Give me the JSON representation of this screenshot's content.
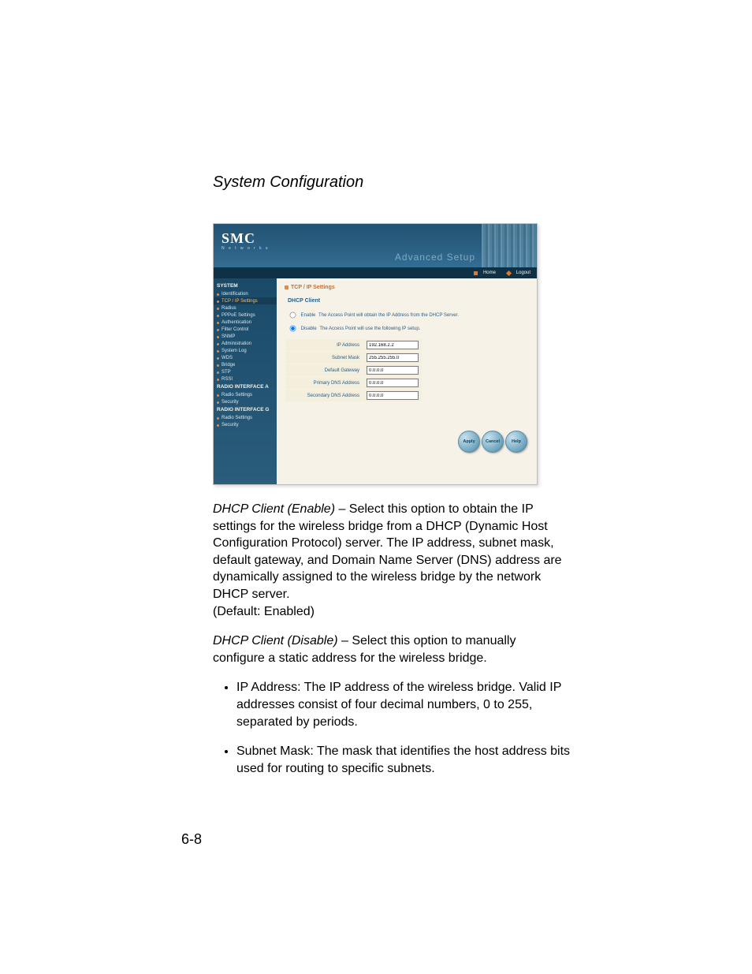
{
  "page_title": "System Configuration",
  "page_number": "6-8",
  "screenshot": {
    "logo": "SMC",
    "logo_sub": "N e t w o r k s",
    "adv_setup": "Advanced Setup",
    "nav": {
      "home": "Home",
      "logout": "Logout"
    },
    "sidebar": {
      "head1": "SYSTEM",
      "items1": [
        "Identification",
        "TCP / IP Settings",
        "Radius",
        "PPPoE Settings",
        "Authentication",
        "Filter Control",
        "SNMP",
        "Administration",
        "System Log",
        "WDS",
        "Bridge",
        "STP",
        "RSSI"
      ],
      "head2": "RADIO INTERFACE A",
      "items2": [
        "Radio Settings",
        "Security"
      ],
      "head3": "RADIO INTERFACE G",
      "items3": [
        "Radio Settings",
        "Security"
      ]
    },
    "content": {
      "title": "TCP / IP Settings",
      "sub": "DHCP Client",
      "opt_enable": "Enable",
      "opt_enable_desc": "The Access Point will obtain the IP Address from the DHCP Server.",
      "opt_disable": "Disable",
      "opt_disable_desc": "The Access Point will use the following IP setup.",
      "fields": [
        {
          "label": "IP Address",
          "value": "192.168.2.2"
        },
        {
          "label": "Subnet Mask",
          "value": "255.255.255.0"
        },
        {
          "label": "Default Gateway",
          "value": "0.0.0.0"
        },
        {
          "label": "Primary DNS Address",
          "value": "0.0.0.0"
        },
        {
          "label": "Secondary DNS Address",
          "value": "0.0.0.0"
        }
      ],
      "btn_apply": "Apply",
      "btn_cancel": "Cancel",
      "btn_help": "Help"
    }
  },
  "para1_lead": "DHCP Client (Enable)",
  "para1_rest": " – Select this option to obtain the IP settings for the wireless bridge from a DHCP (Dynamic Host Configuration Protocol) server. The IP address, subnet mask, default gateway, and Domain Name Server (DNS) address are dynamically assigned to the wireless bridge by the network DHCP server.",
  "para1_default": "(Default: Enabled)",
  "para2_lead": "DHCP Client (Disable)",
  "para2_rest": " – Select this option to manually configure a static address for the wireless bridge.",
  "bullet1": "IP Address: The IP address of the wireless bridge. Valid IP addresses consist of four decimal numbers, 0 to 255, separated by periods.",
  "bullet2": "Subnet Mask: The mask that identifies the host address bits used for routing to specific subnets."
}
